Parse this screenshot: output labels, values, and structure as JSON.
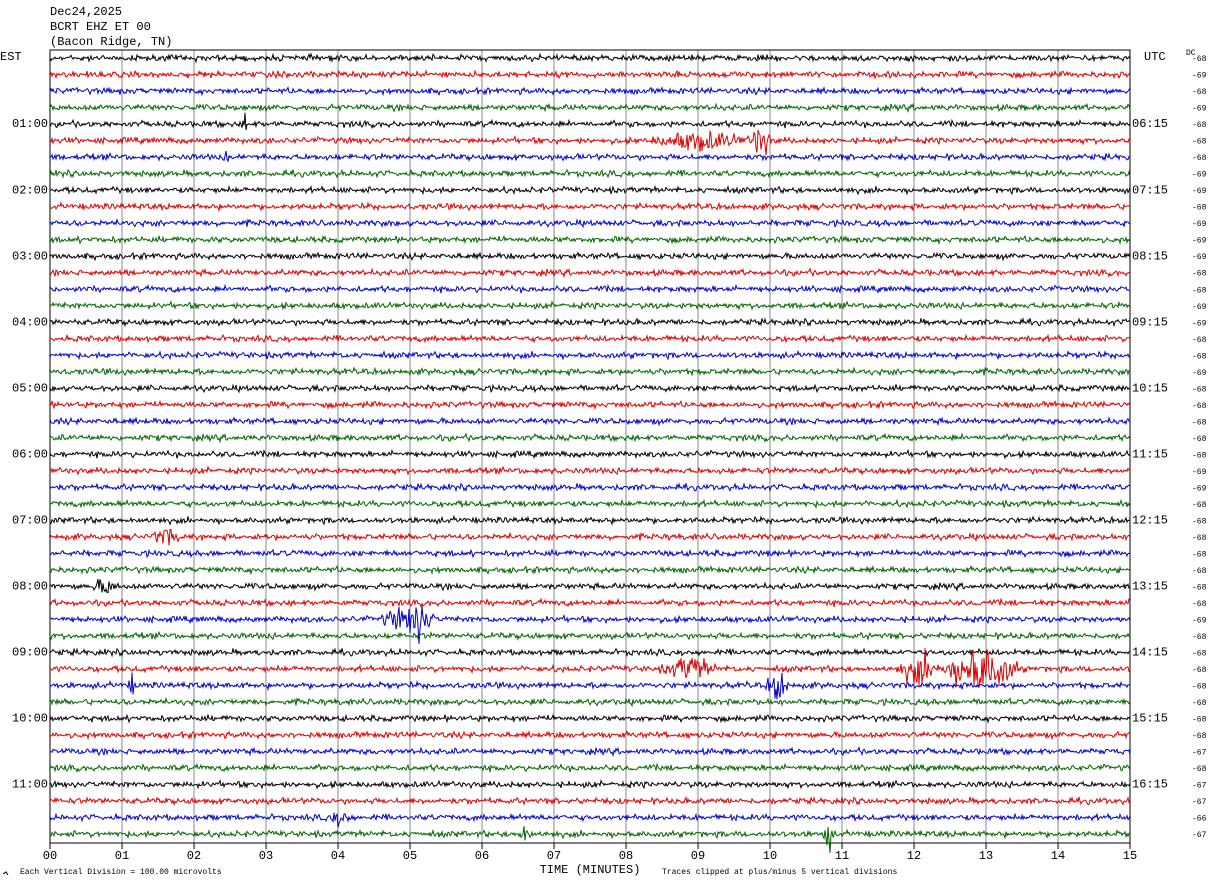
{
  "header": {
    "date": "Dec24,2025",
    "station": "BCRT EHZ ET 00",
    "location": "(Bacon Ridge, TN)"
  },
  "left_axis": {
    "title": "EST",
    "labels": [
      "01:00",
      "02:00",
      "03:00",
      "04:00",
      "05:00",
      "06:00",
      "07:00",
      "08:00",
      "09:00",
      "10:00",
      "11:00"
    ]
  },
  "right_axis": {
    "title": "UTC",
    "labels": [
      "06:15",
      "07:15",
      "08:15",
      "09:15",
      "10:15",
      "11:15",
      "12:15",
      "13:15",
      "14:15",
      "15:15",
      "16:15"
    ]
  },
  "dc": {
    "title": "DC",
    "values": [
      -68,
      -69,
      -68,
      -69,
      -68,
      -68,
      -68,
      -69,
      -69,
      -68,
      -69,
      -69,
      -69,
      -68,
      -68,
      -69,
      -69,
      -68,
      -68,
      -69,
      -68,
      -68,
      -68,
      -68,
      -68,
      -69,
      -69,
      -68,
      -68,
      -68,
      -68,
      -68,
      -68,
      -68,
      -69,
      -68,
      -68,
      -68,
      -68,
      -68,
      -68,
      -68,
      -67,
      -68,
      -67,
      -67,
      -66,
      -67
    ]
  },
  "trace_colors": [
    "#000000",
    "#dd0000",
    "#0000cc",
    "#006600"
  ],
  "x_axis": {
    "title": "TIME (MINUTES)",
    "labels": [
      "00",
      "01",
      "02",
      "03",
      "04",
      "05",
      "06",
      "07",
      "08",
      "09",
      "10",
      "11",
      "12",
      "13",
      "14",
      "15"
    ]
  },
  "footer": {
    "scale": "Each Vertical Division =  100.00 microvolts",
    "clip": "Traces clipped at plus/minus 5 vertical divisions"
  }
}
